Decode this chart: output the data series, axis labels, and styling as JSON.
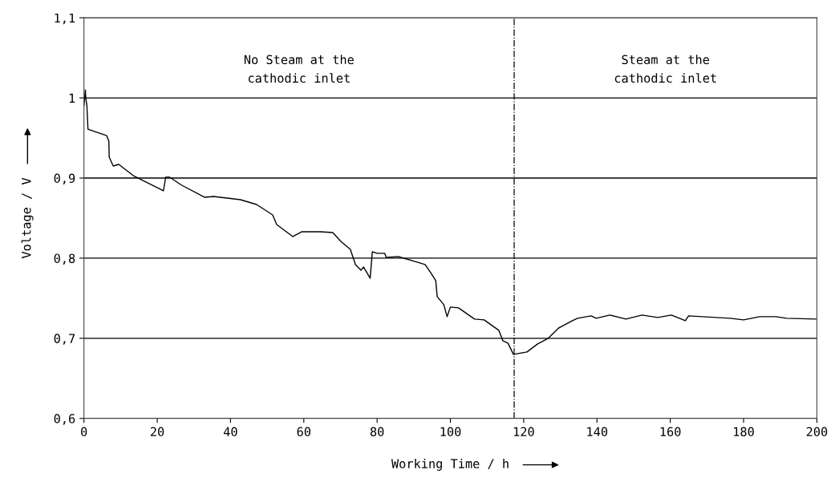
{
  "chart_data": {
    "type": "line",
    "xlabel": "Working Time / h",
    "ylabel": "Voltage / V",
    "x": [
      0,
      0.4,
      0.5,
      0.8,
      1.1,
      6.2,
      6.8,
      6.9,
      8.0,
      9.5,
      13.5,
      21.7,
      22.3,
      23.4,
      26.7,
      32.9,
      35.4,
      42.7,
      47.1,
      51.5,
      52.6,
      57.0,
      59.5,
      64.6,
      67.9,
      70.1,
      72.7,
      74.1,
      75.6,
      76.3,
      78.1,
      78.7,
      80.0,
      82.1,
      82.5,
      85.8,
      90.2,
      93.1,
      94.6,
      96.0,
      96.4,
      98.2,
      99.1,
      100.0,
      102.2,
      106.6,
      109.2,
      113.2,
      114.3,
      115.7,
      117.2,
      120.9,
      123.8,
      126.7,
      129.6,
      133.3,
      134.7,
      138.4,
      139.8,
      143.5,
      147.9,
      152.3,
      156.6,
      160.3,
      162.5,
      164.1,
      165.0,
      176.3,
      180.0,
      184.4,
      188.8,
      191.7,
      199.7
    ],
    "series": [
      {
        "color": "#000000",
        "values": [
          0.99,
          1.01,
          1.0,
          0.991,
          0.961,
          0.953,
          0.946,
          0.926,
          0.915,
          0.917,
          0.903,
          0.884,
          0.901,
          0.901,
          0.891,
          0.876,
          0.877,
          0.873,
          0.867,
          0.854,
          0.842,
          0.827,
          0.833,
          0.833,
          0.832,
          0.821,
          0.811,
          0.792,
          0.785,
          0.789,
          0.775,
          0.808,
          0.806,
          0.806,
          0.801,
          0.802,
          0.796,
          0.792,
          0.782,
          0.772,
          0.752,
          0.742,
          0.727,
          0.739,
          0.738,
          0.724,
          0.723,
          0.71,
          0.697,
          0.694,
          0.68,
          0.683,
          0.693,
          0.7,
          0.713,
          0.722,
          0.725,
          0.728,
          0.725,
          0.729,
          0.724,
          0.729,
          0.726,
          0.729,
          0.725,
          0.722,
          0.728,
          0.725,
          0.723,
          0.727,
          0.727,
          0.725,
          0.724
        ]
      }
    ],
    "xlim": [
      0,
      200
    ],
    "xticks": [
      0,
      20,
      40,
      60,
      80,
      100,
      120,
      140,
      160,
      180,
      200
    ],
    "ylim": [
      0.6,
      1.1
    ],
    "yticks": [
      {
        "value": 0.6,
        "label": "0,6"
      },
      {
        "value": 0.7,
        "label": "0,7"
      },
      {
        "value": 0.8,
        "label": "0,8"
      },
      {
        "value": 0.9,
        "label": "0,9"
      },
      {
        "value": 1.0,
        "label": "1"
      },
      {
        "value": 1.1,
        "label": "1,1"
      }
    ],
    "grid": "y",
    "marker": "none",
    "line_style": "solid",
    "ref_lines": [
      {
        "axis": "x",
        "value": 117.4,
        "color": "#000000",
        "line_style": "dashdot"
      }
    ],
    "annotations": [
      "No Steam at the\ncathodic inlet",
      "Steam at the\ncathodic inlet"
    ]
  }
}
